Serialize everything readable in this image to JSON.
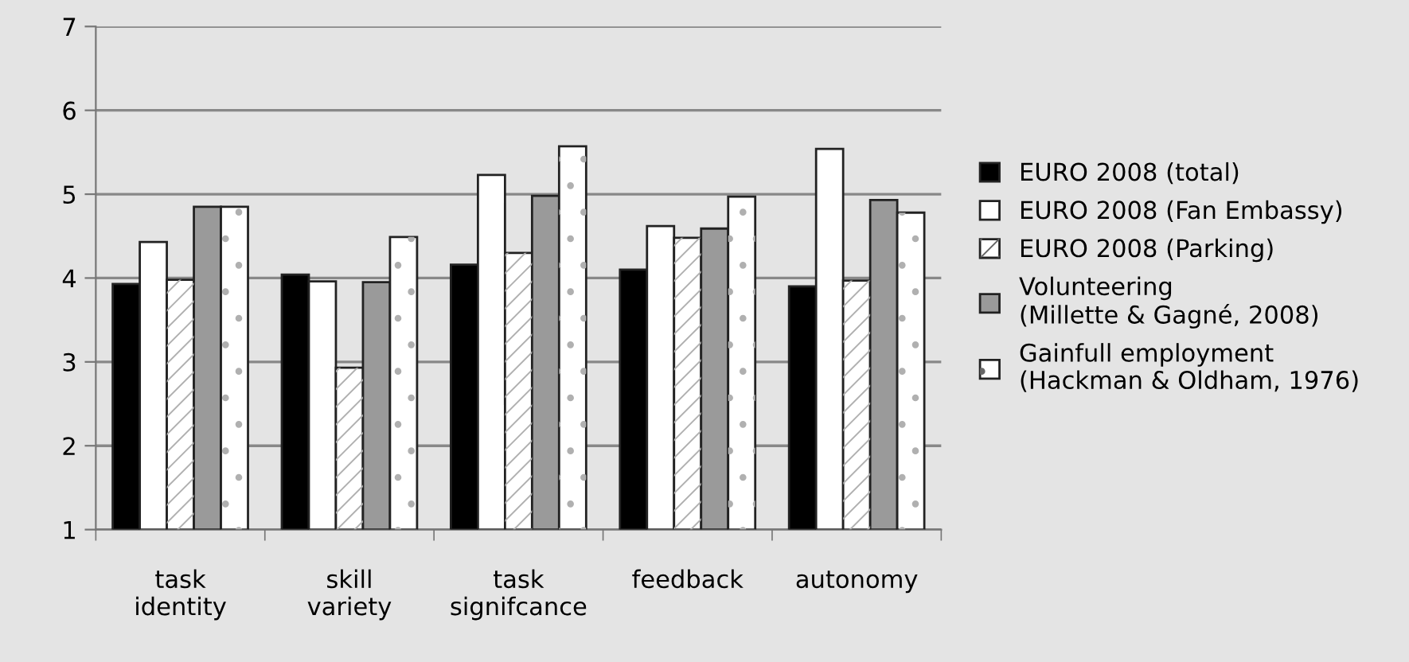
{
  "chart_data": {
    "type": "bar",
    "categories": [
      "task\nidentity",
      "skill\nvariety",
      "task\nsignifcance",
      "feedback",
      "autonomy"
    ],
    "series": [
      {
        "name": "EURO 2008 (total)",
        "color": "#000000",
        "values": [
          3.93,
          4.04,
          4.16,
          4.1,
          3.9
        ]
      },
      {
        "name": "EURO 2008 (Fan Embassy)",
        "color": "#ffffff",
        "values": [
          4.43,
          3.96,
          5.23,
          4.62,
          5.54
        ]
      },
      {
        "name": "EURO 2008 (Parking)",
        "color": "#ffffff",
        "values": [
          3.98,
          2.93,
          4.3,
          4.48,
          3.97
        ]
      },
      {
        "name": "Volunteering\n(Millette & Gagné, 2008)",
        "color": "#9a9a9a",
        "values": [
          4.85,
          3.95,
          4.98,
          4.59,
          4.93
        ]
      },
      {
        "name": "Gainfull employment\n(Hackman & Oldham, 1976)",
        "color": "#ffffff",
        "values": [
          4.85,
          4.49,
          5.57,
          4.97,
          4.78
        ]
      }
    ],
    "ylim": [
      1,
      7
    ],
    "yticks": [
      1,
      2,
      3,
      4,
      5,
      6,
      7
    ],
    "grid": "y",
    "legend": "right"
  }
}
